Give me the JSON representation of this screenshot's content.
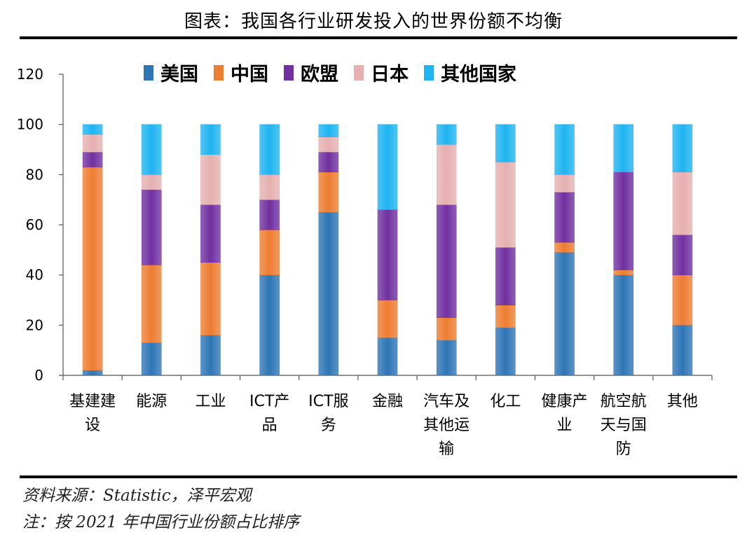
{
  "header": {
    "title": "图表：我国各行业研发投入的世界份额不均衡"
  },
  "legend": [
    {
      "name": "美国",
      "color": "#2E75B6"
    },
    {
      "name": "中国",
      "color": "#ED7D31"
    },
    {
      "name": "欧盟",
      "color": "#7030A0"
    },
    {
      "name": "日本",
      "color": "#E6B0B0"
    },
    {
      "name": "其他国家",
      "color": "#1EB4F0"
    }
  ],
  "chart_data": {
    "type": "bar",
    "stacked": true,
    "categories": [
      [
        "基建建",
        "设"
      ],
      [
        "能源"
      ],
      [
        "工业"
      ],
      [
        "ICT产",
        "品"
      ],
      [
        "ICT服",
        "务"
      ],
      [
        "金融"
      ],
      [
        "汽车及",
        "其他运",
        "输"
      ],
      [
        "化工"
      ],
      [
        "健康产",
        "业"
      ],
      [
        "航空航",
        "天与国",
        "防"
      ],
      [
        "其他"
      ]
    ],
    "series": [
      {
        "name": "美国",
        "color": "#2E75B6",
        "values": [
          2,
          13,
          16,
          40,
          65,
          15,
          14,
          19,
          49,
          40,
          20
        ]
      },
      {
        "name": "中国",
        "color": "#ED7D31",
        "values": [
          81,
          31,
          29,
          18,
          16,
          15,
          9,
          9,
          4,
          2,
          20
        ]
      },
      {
        "name": "欧盟",
        "color": "#7030A0",
        "values": [
          6,
          30,
          23,
          12,
          8,
          36,
          45,
          23,
          20,
          39,
          16
        ]
      },
      {
        "name": "日本",
        "color": "#E6B0B0",
        "values": [
          7,
          6,
          20,
          10,
          6,
          0,
          24,
          34,
          7,
          0,
          25
        ]
      },
      {
        "name": "其他国家",
        "color": "#1EB4F0",
        "values": [
          4,
          20,
          12,
          20,
          5,
          34,
          8,
          15,
          20,
          19,
          19
        ]
      }
    ],
    "yticks": [
      "0",
      "20",
      "40",
      "60",
      "80",
      "100",
      "120"
    ],
    "ylim": [
      0,
      120
    ],
    "legend_position": "top",
    "grid": false
  },
  "footer": {
    "source": "资料来源：Statistic，泽平宏观",
    "note": "注：按 2021 年中国行业份额占比排序"
  }
}
